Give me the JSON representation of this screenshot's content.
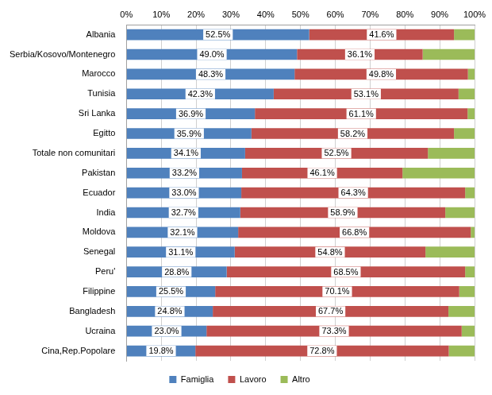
{
  "chart_data": {
    "type": "bar",
    "orientation": "horizontal",
    "stacked": true,
    "grid": true,
    "legend": "bottom",
    "categories": [
      "Albania",
      "Serbia/Kosovo/Montenegro",
      "Marocco",
      "Tunisia",
      "Sri Lanka",
      "Egitto",
      "Totale non comunitari",
      "Pakistan",
      "Ecuador",
      "India",
      "Moldova",
      "Senegal",
      "Peru'",
      "Filippine",
      "Bangladesh",
      "Ucraina",
      "Cina,Rep.Popolare"
    ],
    "xlim": [
      0,
      100
    ],
    "xticks": [
      {
        "value": 0,
        "label": "0%"
      },
      {
        "value": 10,
        "label": "10%"
      },
      {
        "value": 20,
        "label": "20%"
      },
      {
        "value": 30,
        "label": "30%"
      },
      {
        "value": 40,
        "label": "40%"
      },
      {
        "value": 50,
        "label": "50%"
      },
      {
        "value": 60,
        "label": "60%"
      },
      {
        "value": 70,
        "label": "70%"
      },
      {
        "value": 80,
        "label": "80%"
      },
      {
        "value": 90,
        "label": "90%"
      },
      {
        "value": 100,
        "label": "100%"
      }
    ],
    "series": [
      {
        "name": "Famiglia",
        "color": "#4f81bd",
        "data_labels": true,
        "values": [
          52.5,
          49.0,
          48.3,
          42.3,
          36.9,
          35.9,
          34.1,
          33.2,
          33.0,
          32.7,
          32.1,
          31.1,
          28.8,
          25.5,
          24.8,
          23.0,
          19.8
        ],
        "value_labels": [
          "52.5%",
          "49.0%",
          "48.3%",
          "42.3%",
          "36.9%",
          "35.9%",
          "34.1%",
          "33.2%",
          "33.0%",
          "32.7%",
          "32.1%",
          "31.1%",
          "28.8%",
          "25.5%",
          "24.8%",
          "23.0%",
          "19.8%"
        ]
      },
      {
        "name": "Lavoro",
        "color": "#c0504d",
        "data_labels": true,
        "values": [
          41.6,
          36.1,
          49.8,
          53.1,
          61.1,
          58.2,
          52.5,
          46.1,
          64.3,
          58.9,
          66.8,
          54.8,
          68.5,
          70.1,
          67.7,
          73.3,
          72.8
        ],
        "value_labels": [
          "41.6%",
          "36.1%",
          "49.8%",
          "53.1%",
          "61.1%",
          "58.2%",
          "52.5%",
          "46.1%",
          "64.3%",
          "58.9%",
          "66.8%",
          "54.8%",
          "68.5%",
          "70.1%",
          "67.7%",
          "73.3%",
          "72.8%"
        ]
      },
      {
        "name": "Altro",
        "color": "#9bbb59",
        "data_labels": false,
        "values": [
          5.9,
          14.9,
          1.9,
          4.6,
          2.0,
          5.9,
          13.4,
          20.7,
          2.7,
          8.4,
          1.1,
          14.1,
          2.7,
          4.4,
          7.5,
          3.7,
          7.4
        ]
      }
    ]
  }
}
